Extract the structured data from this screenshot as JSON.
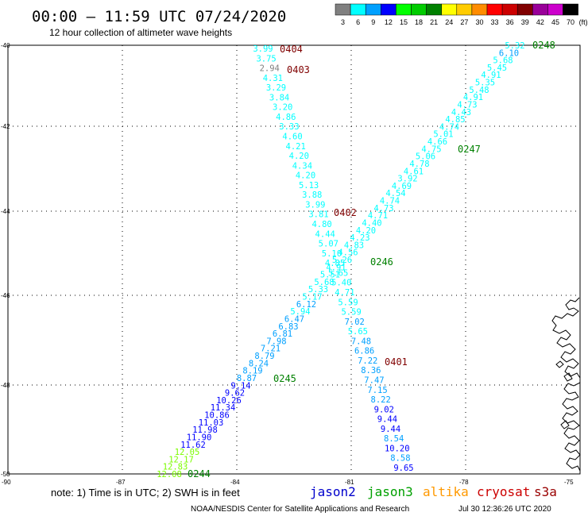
{
  "header": {
    "title": "00:00 – 11:59 UTC 07/24/2020",
    "subtitle": "12 hour collection of altimeter wave heights"
  },
  "legend": {
    "unit": "(ft)",
    "entries": [
      {
        "label": "3",
        "color": "#808080"
      },
      {
        "label": "6",
        "color": "#00ffff"
      },
      {
        "label": "9",
        "color": "#00a0ff"
      },
      {
        "label": "12",
        "color": "#0000ff"
      },
      {
        "label": "15",
        "color": "#00ff00"
      },
      {
        "label": "18",
        "color": "#00cc00"
      },
      {
        "label": "21",
        "color": "#008000"
      },
      {
        "label": "24",
        "color": "#ffff00"
      },
      {
        "label": "27",
        "color": "#ffcc00"
      },
      {
        "label": "30",
        "color": "#ff8c00"
      },
      {
        "label": "33",
        "color": "#ff0000"
      },
      {
        "label": "36",
        "color": "#cc0000"
      },
      {
        "label": "39",
        "color": "#800000"
      },
      {
        "label": "42",
        "color": "#990099"
      },
      {
        "label": "45",
        "color": "#cc00cc"
      },
      {
        "label": "70",
        "color": "#000000"
      }
    ]
  },
  "axes": {
    "lat_labels": [
      "-40",
      "-42",
      "-44",
      "-46",
      "-48",
      "-50"
    ],
    "lon_labels": [
      "-90",
      "-87",
      "-84",
      "-81",
      "-78",
      "-75"
    ]
  },
  "passes": [
    {
      "id": "descending",
      "labels": [
        "0404",
        "0403",
        "0402",
        "0401"
      ]
    },
    {
      "id": "ascending",
      "labels": [
        "0248",
        "0247",
        "0246",
        "0245",
        "0244"
      ]
    }
  ],
  "track_descending": [
    {
      "v": "3.99",
      "c": "#00ffff"
    },
    {
      "v": "3.75",
      "c": "#00ffff"
    },
    {
      "v": "2.94",
      "c": "#808080"
    },
    {
      "v": "4.31",
      "c": "#00ffff"
    },
    {
      "v": "3.29",
      "c": "#00ffff"
    },
    {
      "v": "3.84",
      "c": "#00ffff"
    },
    {
      "v": "3.20",
      "c": "#00ffff"
    },
    {
      "v": "4.86",
      "c": "#00ffff"
    },
    {
      "v": "3.33",
      "c": "#00ffff"
    },
    {
      "v": "4.60",
      "c": "#00ffff"
    },
    {
      "v": "4.21",
      "c": "#00ffff"
    },
    {
      "v": "4.20",
      "c": "#00ffff"
    },
    {
      "v": "4.34",
      "c": "#00ffff"
    },
    {
      "v": "4.20",
      "c": "#00ffff"
    },
    {
      "v": "5.13",
      "c": "#00ffff"
    },
    {
      "v": "3.88",
      "c": "#00ffff"
    },
    {
      "v": "3.99",
      "c": "#00ffff"
    },
    {
      "v": "3.81",
      "c": "#00ffff"
    },
    {
      "v": "4.80",
      "c": "#00ffff"
    },
    {
      "v": "4.44",
      "c": "#00ffff"
    },
    {
      "v": "5.07",
      "c": "#00ffff"
    },
    {
      "v": "5.10",
      "c": "#00ffff"
    },
    {
      "v": "4.85",
      "c": "#00ffff"
    },
    {
      "v": "5.65",
      "c": "#00ffff"
    },
    {
      "v": "5.40",
      "c": "#00ffff"
    },
    {
      "v": "4.71",
      "c": "#00ffff"
    },
    {
      "v": "5.59",
      "c": "#00ffff"
    },
    {
      "v": "5.59",
      "c": "#00ffff"
    },
    {
      "v": "7.02",
      "c": "#00a0ff"
    },
    {
      "v": "5.65",
      "c": "#00ffff"
    },
    {
      "v": "7.48",
      "c": "#00a0ff"
    },
    {
      "v": "6.86",
      "c": "#00a0ff"
    },
    {
      "v": "7.22",
      "c": "#00a0ff"
    },
    {
      "v": "8.36",
      "c": "#00a0ff"
    },
    {
      "v": "7.47",
      "c": "#00a0ff"
    },
    {
      "v": "7.15",
      "c": "#00a0ff"
    },
    {
      "v": "8.22",
      "c": "#00a0ff"
    },
    {
      "v": "9.02",
      "c": "#0000ff"
    },
    {
      "v": "9.44",
      "c": "#0000ff"
    },
    {
      "v": "9.44",
      "c": "#0000ff"
    },
    {
      "v": "8.54",
      "c": "#00a0ff"
    },
    {
      "v": "10.20",
      "c": "#0000ff"
    },
    {
      "v": "8.58",
      "c": "#00a0ff"
    },
    {
      "v": "9.65",
      "c": "#0000ff"
    }
  ],
  "track_ascending": [
    {
      "v": "5.32",
      "c": "#00ffff"
    },
    {
      "v": "6.10",
      "c": "#00a0ff"
    },
    {
      "v": "5.68",
      "c": "#00ffff"
    },
    {
      "v": "5.45",
      "c": "#00ffff"
    },
    {
      "v": "4.91",
      "c": "#00ffff"
    },
    {
      "v": "5.35",
      "c": "#00ffff"
    },
    {
      "v": "5.48",
      "c": "#00ffff"
    },
    {
      "v": "4.91",
      "c": "#00ffff"
    },
    {
      "v": "4.73",
      "c": "#00ffff"
    },
    {
      "v": "4.43",
      "c": "#00ffff"
    },
    {
      "v": "4.85",
      "c": "#00ffff"
    },
    {
      "v": "4.74",
      "c": "#00ffff"
    },
    {
      "v": "5.01",
      "c": "#00ffff"
    },
    {
      "v": "4.66",
      "c": "#00ffff"
    },
    {
      "v": "4.75",
      "c": "#00ffff"
    },
    {
      "v": "5.06",
      "c": "#00ffff"
    },
    {
      "v": "4.78",
      "c": "#00ffff"
    },
    {
      "v": "4.61",
      "c": "#00ffff"
    },
    {
      "v": "3.92",
      "c": "#00ffff"
    },
    {
      "v": "4.69",
      "c": "#00ffff"
    },
    {
      "v": "4.54",
      "c": "#00ffff"
    },
    {
      "v": "4.74",
      "c": "#00ffff"
    },
    {
      "v": "4.73",
      "c": "#00ffff"
    },
    {
      "v": "4.71",
      "c": "#00ffff"
    },
    {
      "v": "4.40",
      "c": "#00ffff"
    },
    {
      "v": "4.20",
      "c": "#00ffff"
    },
    {
      "v": "4.23",
      "c": "#00ffff"
    },
    {
      "v": "4.83",
      "c": "#00ffff"
    },
    {
      "v": "4.56",
      "c": "#00ffff"
    },
    {
      "v": "5.26",
      "c": "#00ffff"
    },
    {
      "v": "4.91",
      "c": "#00ffff"
    },
    {
      "v": "5.51",
      "c": "#00ffff"
    },
    {
      "v": "5.68",
      "c": "#00ffff"
    },
    {
      "v": "5.33",
      "c": "#00ffff"
    },
    {
      "v": "5.17",
      "c": "#00ffff"
    },
    {
      "v": "6.12",
      "c": "#00a0ff"
    },
    {
      "v": "5.94",
      "c": "#00ffff"
    },
    {
      "v": "6.47",
      "c": "#00a0ff"
    },
    {
      "v": "6.83",
      "c": "#00a0ff"
    },
    {
      "v": "6.81",
      "c": "#00a0ff"
    },
    {
      "v": "7.98",
      "c": "#00a0ff"
    },
    {
      "v": "7.21",
      "c": "#00a0ff"
    },
    {
      "v": "8.79",
      "c": "#00a0ff"
    },
    {
      "v": "8.24",
      "c": "#00a0ff"
    },
    {
      "v": "8.19",
      "c": "#00a0ff"
    },
    {
      "v": "8.87",
      "c": "#00a0ff"
    },
    {
      "v": "9.14",
      "c": "#0000ff"
    },
    {
      "v": "9.62",
      "c": "#0000ff"
    },
    {
      "v": "10.26",
      "c": "#0000ff"
    },
    {
      "v": "11.34",
      "c": "#0000ff"
    },
    {
      "v": "10.86",
      "c": "#0000ff"
    },
    {
      "v": "11.03",
      "c": "#0000ff"
    },
    {
      "v": "11.98",
      "c": "#0000ff"
    },
    {
      "v": "11.90",
      "c": "#0000ff"
    },
    {
      "v": "11.62",
      "c": "#0000ff"
    },
    {
      "v": "12.05",
      "c": "#7cfc00"
    },
    {
      "v": "12.17",
      "c": "#7cfc00"
    },
    {
      "v": "12.83",
      "c": "#7cfc00"
    },
    {
      "v": "12.08",
      "c": "#7cfc00"
    }
  ],
  "footer": {
    "note": "note: 1) Time is in UTC; 2) SWH is in feet",
    "credit": "NOAA/NESDIS Center for Satellite Applications and Research",
    "timestamp": "Jul 30 12:36:26 UTC 2020",
    "satellites": [
      {
        "name": "jason2",
        "color": "#0000cc"
      },
      {
        "name": "jason3",
        "color": "#00a000"
      },
      {
        "name": "altika",
        "color": "#ff9900"
      },
      {
        "name": "cryosat",
        "color": "#cc0000"
      },
      {
        "name": "s3a",
        "color": "#990000"
      }
    ]
  }
}
